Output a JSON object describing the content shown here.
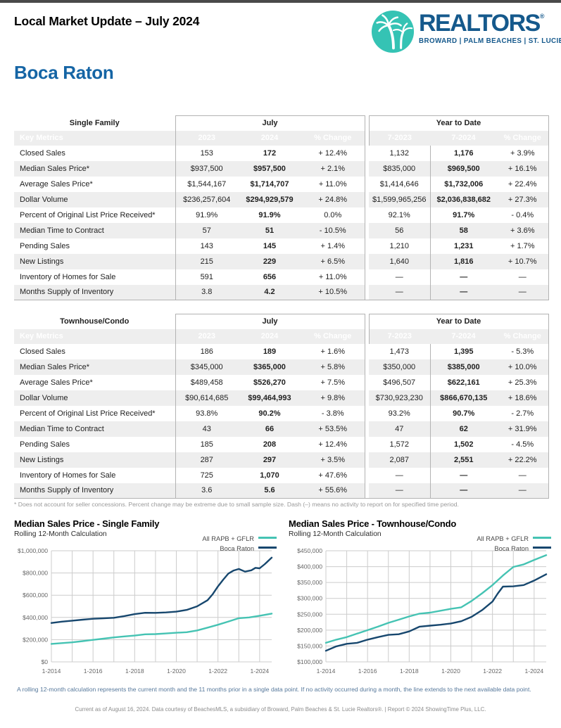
{
  "page": {
    "title": "Local Market Update – July 2024",
    "city": "Boca Raton",
    "footnote": "* Does not account for seller concessions. Percent change may be extreme due to small sample size. Dash (–) means no activity to report on for specified time period.",
    "rolling_note": "A rolling 12-month calculation represents the current month and the 11 months prior in a single data point. If no activity occurred during a month, the line extends to the next available data point.",
    "footer": "Current as of August 16, 2024. Data courtesy of BeachesMLS, a subsidiary of Broward, Palm Beaches & St. Lucie Realtors®. | Report © 2024 ShowingTime Plus, LLC."
  },
  "logo": {
    "brand": "REALTORS",
    "registered": "®",
    "regions": "BROWARD | PALM BEACHES | ST. LUCIE",
    "palm_icon": "palm-tree-icon"
  },
  "tables": [
    {
      "section": "Single Family",
      "july_label": "July",
      "ytd_label": "Year to Date",
      "key_label": "Key Metrics",
      "columns": [
        "2023",
        "2024",
        "% Change",
        "7-2023",
        "7-2024",
        "% Change"
      ],
      "rows": [
        [
          "Closed Sales",
          "153",
          "172",
          "+ 12.4%",
          "1,132",
          "1,176",
          "+ 3.9%"
        ],
        [
          "Median Sales Price*",
          "$937,500",
          "$957,500",
          "+ 2.1%",
          "$835,000",
          "$969,500",
          "+ 16.1%"
        ],
        [
          "Average Sales Price*",
          "$1,544,167",
          "$1,714,707",
          "+ 11.0%",
          "$1,414,646",
          "$1,732,006",
          "+ 22.4%"
        ],
        [
          "Dollar Volume",
          "$236,257,604",
          "$294,929,579",
          "+ 24.8%",
          "$1,599,965,256",
          "$2,036,838,682",
          "+ 27.3%"
        ],
        [
          "Percent of Original List Price Received*",
          "91.9%",
          "91.9%",
          "0.0%",
          "92.1%",
          "91.7%",
          "- 0.4%"
        ],
        [
          "Median Time to Contract",
          "57",
          "51",
          "- 10.5%",
          "56",
          "58",
          "+ 3.6%"
        ],
        [
          "Pending Sales",
          "143",
          "145",
          "+ 1.4%",
          "1,210",
          "1,231",
          "+ 1.7%"
        ],
        [
          "New Listings",
          "215",
          "229",
          "+ 6.5%",
          "1,640",
          "1,816",
          "+ 10.7%"
        ],
        [
          "Inventory of Homes for Sale",
          "591",
          "656",
          "+ 11.0%",
          "—",
          "—",
          "—"
        ],
        [
          "Months Supply of Inventory",
          "3.8",
          "4.2",
          "+ 10.5%",
          "—",
          "—",
          "—"
        ]
      ]
    },
    {
      "section": "Townhouse/Condo",
      "july_label": "July",
      "ytd_label": "Year to Date",
      "key_label": "Key Metrics",
      "columns": [
        "2023",
        "2024",
        "% Change",
        "7-2023",
        "7-2024",
        "% Change"
      ],
      "rows": [
        [
          "Closed Sales",
          "186",
          "189",
          "+ 1.6%",
          "1,473",
          "1,395",
          "- 5.3%"
        ],
        [
          "Median Sales Price*",
          "$345,000",
          "$365,000",
          "+ 5.8%",
          "$350,000",
          "$385,000",
          "+ 10.0%"
        ],
        [
          "Average Sales Price*",
          "$489,458",
          "$526,270",
          "+ 7.5%",
          "$496,507",
          "$622,161",
          "+ 25.3%"
        ],
        [
          "Dollar Volume",
          "$90,614,685",
          "$99,464,993",
          "+ 9.8%",
          "$730,923,230",
          "$866,670,135",
          "+ 18.6%"
        ],
        [
          "Percent of Original List Price Received*",
          "93.8%",
          "90.2%",
          "- 3.8%",
          "93.2%",
          "90.7%",
          "- 2.7%"
        ],
        [
          "Median Time to Contract",
          "43",
          "66",
          "+ 53.5%",
          "47",
          "62",
          "+ 31.9%"
        ],
        [
          "Pending Sales",
          "185",
          "208",
          "+ 12.4%",
          "1,572",
          "1,502",
          "- 4.5%"
        ],
        [
          "New Listings",
          "287",
          "297",
          "+ 3.5%",
          "2,087",
          "2,551",
          "+ 22.2%"
        ],
        [
          "Inventory of Homes for Sale",
          "725",
          "1,070",
          "+ 47.6%",
          "—",
          "—",
          "—"
        ],
        [
          "Months Supply of Inventory",
          "3.6",
          "5.6",
          "+ 55.6%",
          "—",
          "—",
          "—"
        ]
      ]
    }
  ],
  "chart_data": [
    {
      "type": "line",
      "title": "Median Sales Price - Single Family",
      "subtitle": "Rolling 12-Month Calculation",
      "legend_position": "top-right",
      "grid": true,
      "x_range": [
        2014,
        2024.58
      ],
      "x_grid_years": [
        2014,
        2015,
        2016,
        2017,
        2018,
        2019,
        2020,
        2021,
        2022,
        2023,
        2024
      ],
      "x_ticks": [
        {
          "year": 2014,
          "label": "1-2014"
        },
        {
          "year": 2016,
          "label": "1-2016"
        },
        {
          "year": 2018,
          "label": "1-2018"
        },
        {
          "year": 2020,
          "label": "1-2020"
        },
        {
          "year": 2022,
          "label": "1-2022"
        },
        {
          "year": 2024,
          "label": "1-2024"
        }
      ],
      "ylim": [
        0,
        1000000
      ],
      "y_step": 200000,
      "series": [
        {
          "name": "All RAPB + GFLR",
          "color": "#45c3b3",
          "points": [
            [
              2014,
              162000
            ],
            [
              2014.5,
              169000
            ],
            [
              2015,
              176000
            ],
            [
              2015.5,
              187000
            ],
            [
              2016,
              198000
            ],
            [
              2016.5,
              209000
            ],
            [
              2017,
              220000
            ],
            [
              2017.5,
              229000
            ],
            [
              2018,
              237000
            ],
            [
              2018.5,
              248000
            ],
            [
              2019,
              250000
            ],
            [
              2019.5,
              256000
            ],
            [
              2020,
              262000
            ],
            [
              2020.5,
              267000
            ],
            [
              2021,
              283000
            ],
            [
              2021.5,
              308000
            ],
            [
              2022,
              334000
            ],
            [
              2022.5,
              363000
            ],
            [
              2023,
              393000
            ],
            [
              2023.5,
              400000
            ],
            [
              2024,
              415000
            ],
            [
              2024.58,
              434000
            ]
          ]
        },
        {
          "name": "Boca Raton",
          "color": "#17476e",
          "points": [
            [
              2014,
              350000
            ],
            [
              2014.5,
              362000
            ],
            [
              2015,
              371000
            ],
            [
              2015.5,
              380000
            ],
            [
              2016,
              388000
            ],
            [
              2016.5,
              392000
            ],
            [
              2017,
              397000
            ],
            [
              2017.5,
              412000
            ],
            [
              2018,
              430000
            ],
            [
              2018.5,
              442000
            ],
            [
              2019,
              441000
            ],
            [
              2019.5,
              445000
            ],
            [
              2020,
              452000
            ],
            [
              2020.5,
              468000
            ],
            [
              2021,
              500000
            ],
            [
              2021.5,
              555000
            ],
            [
              2021.75,
              610000
            ],
            [
              2022,
              680000
            ],
            [
              2022.25,
              740000
            ],
            [
              2022.5,
              795000
            ],
            [
              2022.75,
              822000
            ],
            [
              2023,
              836000
            ],
            [
              2023.3,
              812000
            ],
            [
              2023.6,
              824000
            ],
            [
              2023.8,
              846000
            ],
            [
              2024,
              842000
            ],
            [
              2024.25,
              880000
            ],
            [
              2024.58,
              938000
            ]
          ]
        }
      ]
    },
    {
      "type": "line",
      "title": "Median Sales Price - Townhouse/Condo",
      "subtitle": "Rolling 12-Month Calculation",
      "legend_position": "top-right",
      "grid": true,
      "x_range": [
        2014,
        2024.58
      ],
      "x_grid_years": [
        2014,
        2015,
        2016,
        2017,
        2018,
        2019,
        2020,
        2021,
        2022,
        2023,
        2024
      ],
      "x_ticks": [
        {
          "year": 2014,
          "label": "1-2014"
        },
        {
          "year": 2016,
          "label": "1-2016"
        },
        {
          "year": 2018,
          "label": "1-2018"
        },
        {
          "year": 2020,
          "label": "1-2020"
        },
        {
          "year": 2022,
          "label": "1-2022"
        },
        {
          "year": 2024,
          "label": "1-2024"
        }
      ],
      "ylim": [
        100000,
        450000
      ],
      "y_step": 50000,
      "series": [
        {
          "name": "All RAPB + GFLR",
          "color": "#45c3b3",
          "points": [
            [
              2014,
              160000
            ],
            [
              2014.5,
              170000
            ],
            [
              2015,
              178000
            ],
            [
              2015.5,
              189000
            ],
            [
              2016,
              200000
            ],
            [
              2016.5,
              211000
            ],
            [
              2017,
              223000
            ],
            [
              2017.5,
              233000
            ],
            [
              2018,
              243000
            ],
            [
              2018.5,
              252000
            ],
            [
              2019,
              255000
            ],
            [
              2019.5,
              261000
            ],
            [
              2020,
              267000
            ],
            [
              2020.5,
              272000
            ],
            [
              2021,
              292000
            ],
            [
              2021.5,
              316000
            ],
            [
              2022,
              342000
            ],
            [
              2022.5,
              372000
            ],
            [
              2023,
              399000
            ],
            [
              2023.5,
              407000
            ],
            [
              2024,
              421000
            ],
            [
              2024.58,
              436000
            ]
          ]
        },
        {
          "name": "Boca Raton",
          "color": "#17476e",
          "points": [
            [
              2014,
              135000
            ],
            [
              2014.5,
              149000
            ],
            [
              2015,
              157000
            ],
            [
              2015.5,
              160000
            ],
            [
              2016,
              170000
            ],
            [
              2016.5,
              178000
            ],
            [
              2017,
              185000
            ],
            [
              2017.5,
              187000
            ],
            [
              2018,
              196000
            ],
            [
              2018.5,
              211000
            ],
            [
              2019,
              214000
            ],
            [
              2019.5,
              217000
            ],
            [
              2020,
              221000
            ],
            [
              2020.5,
              228000
            ],
            [
              2021,
              242000
            ],
            [
              2021.5,
              263000
            ],
            [
              2022,
              290000
            ],
            [
              2022.25,
              315000
            ],
            [
              2022.5,
              337000
            ],
            [
              2023,
              338000
            ],
            [
              2023.5,
              342000
            ],
            [
              2024,
              356000
            ],
            [
              2024.58,
              376000
            ]
          ]
        }
      ]
    }
  ],
  "colors": {
    "topbar": "#4a4a4a",
    "table_header_bg": "#1b4b72",
    "alt_row": "#eeeeee",
    "table_border": "#b3b3b3",
    "brand_blue": "#15598c",
    "city_blue": "#1565a5",
    "logo_teal": "#35c3b4",
    "series_teal": "#45c3b3",
    "series_navy": "#17476e",
    "note_blue": "#56789b",
    "footnote_gray": "#999999"
  }
}
